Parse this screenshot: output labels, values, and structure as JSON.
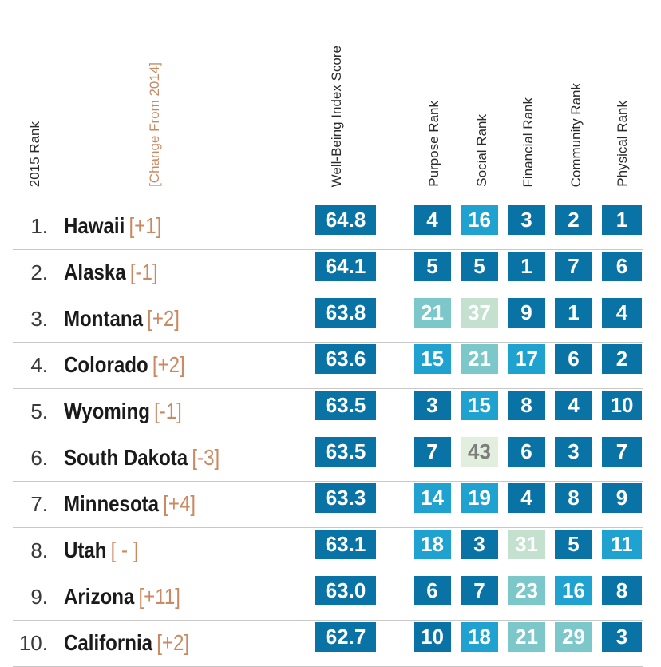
{
  "chart_data": {
    "type": "table",
    "columns": [
      "2015 Rank",
      "[Change From 2014]",
      "Well-Being Index Score",
      "Purpose Rank",
      "Social Rank",
      "Financial Rank",
      "Community Rank",
      "Physical Rank"
    ],
    "rows": [
      {
        "rank": "1.",
        "state": "Hawaii",
        "change": "[+1]",
        "score": "64.8",
        "purpose": 4,
        "social": 16,
        "financial": 3,
        "community": 2,
        "physical": 1
      },
      {
        "rank": "2.",
        "state": "Alaska",
        "change": "[-1]",
        "score": "64.1",
        "purpose": 5,
        "social": 5,
        "financial": 1,
        "community": 7,
        "physical": 6
      },
      {
        "rank": "3.",
        "state": "Montana",
        "change": "[+2]",
        "score": "63.8",
        "purpose": 21,
        "social": 37,
        "financial": 9,
        "community": 1,
        "physical": 4
      },
      {
        "rank": "4.",
        "state": "Colorado",
        "change": "[+2]",
        "score": "63.6",
        "purpose": 15,
        "social": 21,
        "financial": 17,
        "community": 6,
        "physical": 2
      },
      {
        "rank": "5.",
        "state": "Wyoming",
        "change": "[-1]",
        "score": "63.5",
        "purpose": 3,
        "social": 15,
        "financial": 8,
        "community": 4,
        "physical": 10
      },
      {
        "rank": "6.",
        "state": "South Dakota",
        "change": "[-3]",
        "score": "63.5",
        "purpose": 7,
        "social": 43,
        "financial": 6,
        "community": 3,
        "physical": 7
      },
      {
        "rank": "7.",
        "state": "Minnesota",
        "change": "[+4]",
        "score": "63.3",
        "purpose": 14,
        "social": 19,
        "financial": 4,
        "community": 8,
        "physical": 9
      },
      {
        "rank": "8.",
        "state": "Utah",
        "change": "[ - ]",
        "score": "63.1",
        "purpose": 18,
        "social": 3,
        "financial": 31,
        "community": 5,
        "physical": 11
      },
      {
        "rank": "9.",
        "state": "Arizona",
        "change": "[+11]",
        "score": "63.0",
        "purpose": 6,
        "social": 7,
        "financial": 23,
        "community": 16,
        "physical": 8
      },
      {
        "rank": "10.",
        "state": "California",
        "change": "[+2]",
        "score": "62.7",
        "purpose": 10,
        "social": 18,
        "financial": 21,
        "community": 29,
        "physical": 3
      }
    ],
    "colors": {
      "score": "#0a73a6",
      "rank_1_10": "#0a73a6",
      "rank_11_20": "#1fa2cf",
      "rank_21_30": "#7cc7c9",
      "rank_31_40": "#c4e0cf",
      "rank_41_50": "#e2efdf",
      "text_light": "#ffffff",
      "text_dark": "#7d7d7d"
    }
  }
}
